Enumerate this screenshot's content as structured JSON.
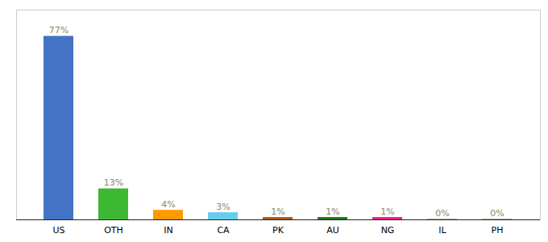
{
  "chart_data": {
    "type": "bar",
    "categories": [
      "US",
      "OTH",
      "IN",
      "CA",
      "PK",
      "AU",
      "NG",
      "IL",
      "PH"
    ],
    "values": [
      77,
      13,
      4,
      3,
      1,
      1,
      1,
      0.3,
      0.3
    ],
    "value_labels": [
      "77%",
      "13%",
      "4%",
      "3%",
      "1%",
      "1%",
      "1%",
      "0%",
      "0%"
    ],
    "colors": [
      "#4472c4",
      "#3cb832",
      "#ff9900",
      "#66ccee",
      "#b35a1a",
      "#1a7a1a",
      "#ff1a8c",
      "#aaaaaa",
      "#aaaaaa"
    ],
    "ylim": [
      0,
      88
    ],
    "yticks": [],
    "grid": false,
    "data_labels": true,
    "tick_labels": "x"
  }
}
